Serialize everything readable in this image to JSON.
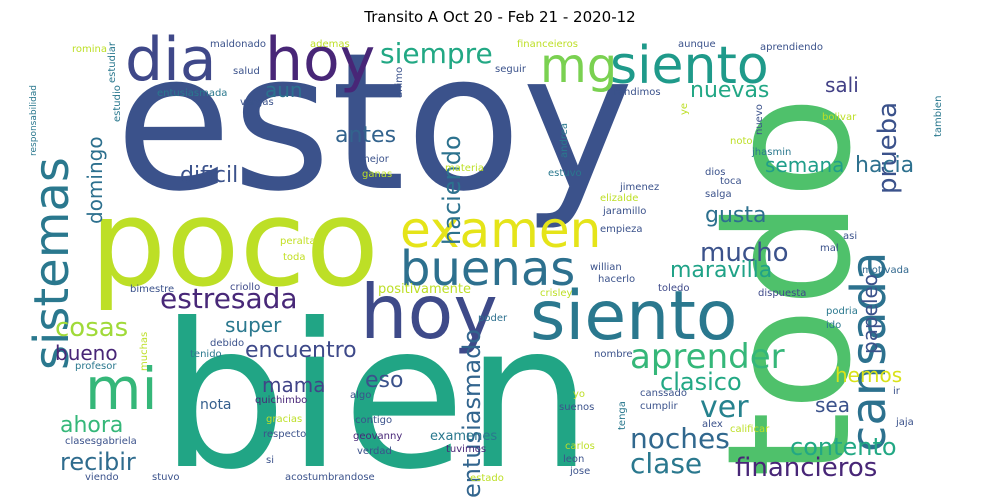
{
  "title": "Transito A Oct 20 - Feb 21 - 2020-12",
  "words": [
    {
      "text": "estoy",
      "color": "#3b528b"
    },
    {
      "text": "bien",
      "color": "#21a585"
    },
    {
      "text": "todo",
      "color": "#4fc16b"
    },
    {
      "text": "poco",
      "color": "#bddf26"
    },
    {
      "text": "siento",
      "color": "#2a788e"
    },
    {
      "text": "hoy",
      "color": "#3e4a89"
    },
    {
      "text": "dia",
      "color": "#3f4889"
    },
    {
      "text": "hoy",
      "color": "#482677"
    },
    {
      "text": "sistemas",
      "color": "#2a788e"
    },
    {
      "text": "siento",
      "color": "#1f9a8a"
    },
    {
      "text": "mg",
      "color": "#7ad151"
    },
    {
      "text": "mi",
      "color": "#35b779"
    },
    {
      "text": "cansada",
      "color": "#2c718e"
    },
    {
      "text": "examen",
      "color": "#e5e419"
    },
    {
      "text": "buenas",
      "color": "#2d708e"
    },
    {
      "text": "aprender",
      "color": "#35b779"
    },
    {
      "text": "siempre",
      "color": "#22a884"
    },
    {
      "text": "estresada",
      "color": "#482878"
    },
    {
      "text": "financieros",
      "color": "#482677"
    },
    {
      "text": "noches",
      "color": "#31688e"
    },
    {
      "text": "clase",
      "color": "#2a788e"
    },
    {
      "text": "ver",
      "color": "#26828e"
    },
    {
      "text": "haciendo",
      "color": "#2c728e"
    },
    {
      "text": "entusiasmado",
      "color": "#32658e"
    },
    {
      "text": "mucho",
      "color": "#3b528b"
    },
    {
      "text": "prueba",
      "color": "#3b528b"
    },
    {
      "text": "recibir",
      "color": "#2f6c8e"
    },
    {
      "text": "cosas",
      "color": "#a0da39"
    },
    {
      "text": "contento",
      "color": "#22a884"
    },
    {
      "text": "encuentro",
      "color": "#3e4989"
    },
    {
      "text": "maravilla",
      "color": "#1fa287"
    },
    {
      "text": "clasico",
      "color": "#22a884"
    },
    {
      "text": "nuevas",
      "color": "#22a785"
    },
    {
      "text": "antes",
      "color": "#33638d"
    },
    {
      "text": "domingo",
      "color": "#2d708e"
    },
    {
      "text": "dificil",
      "color": "#3b528b"
    },
    {
      "text": "papeleo",
      "color": "#3b528b"
    },
    {
      "text": "ahora",
      "color": "#35b779"
    },
    {
      "text": "gusta",
      "color": "#2d708e"
    },
    {
      "text": "hacia",
      "color": "#2d708e"
    },
    {
      "text": "semana",
      "color": "#1f9e89"
    },
    {
      "text": "sali",
      "color": "#424086"
    },
    {
      "text": "aun",
      "color": "#2c718e"
    },
    {
      "text": "eso",
      "color": "#3b528b"
    },
    {
      "text": "super",
      "color": "#2a788e"
    },
    {
      "text": "mama",
      "color": "#414487"
    },
    {
      "text": "bueno",
      "color": "#482677"
    },
    {
      "text": "sea",
      "color": "#3b528b"
    },
    {
      "text": "hemos",
      "color": "#d8e219"
    },
    {
      "text": "nota",
      "color": "#355f8d"
    },
    {
      "text": "examenes",
      "color": "#2a788e"
    },
    {
      "text": "positivamente",
      "color": "#bddf26"
    },
    {
      "text": "bimestre",
      "color": "#3b528b"
    },
    {
      "text": "criollo",
      "color": "#3e4989"
    },
    {
      "text": "dispuesta",
      "color": "#3e4989"
    },
    {
      "text": "peralta",
      "color": "#c2df23"
    },
    {
      "text": "toda",
      "color": "#c2df23"
    },
    {
      "text": "motivada",
      "color": "#31688e"
    },
    {
      "text": "poder",
      "color": "#2d708e"
    },
    {
      "text": "crisley",
      "color": "#bddf26"
    },
    {
      "text": "toledo",
      "color": "#3e4989"
    },
    {
      "text": "hacerlo",
      "color": "#3b528b"
    },
    {
      "text": "willian",
      "color": "#3b528b"
    },
    {
      "text": "podria",
      "color": "#2a788e"
    },
    {
      "text": "ido",
      "color": "#2a788e"
    },
    {
      "text": "mal",
      "color": "#3b528b"
    },
    {
      "text": "asi",
      "color": "#3b528b"
    },
    {
      "text": "empieza",
      "color": "#3b528b"
    },
    {
      "text": "jaramillo",
      "color": "#3b528b"
    },
    {
      "text": "salga",
      "color": "#3b528b"
    },
    {
      "text": "elizalde",
      "color": "#bddf26"
    },
    {
      "text": "toca",
      "color": "#3b528b"
    },
    {
      "text": "dios",
      "color": "#3b528b"
    },
    {
      "text": "jimenez",
      "color": "#3b528b"
    },
    {
      "text": "jhasmin",
      "color": "#2a788e"
    },
    {
      "text": "noto",
      "color": "#bddf26"
    },
    {
      "text": "bolivar",
      "color": "#bddf26"
    },
    {
      "text": "tambien",
      "color": "#2a788e"
    },
    {
      "text": "nuevo",
      "color": "#3b528b"
    },
    {
      "text": "rendimos",
      "color": "#3b528b"
    },
    {
      "text": "ye",
      "color": "#bddf26"
    },
    {
      "text": "estuvo",
      "color": "#2a788e"
    },
    {
      "text": "andrea",
      "color": "#2a788e"
    },
    {
      "text": "seguir",
      "color": "#3b528b"
    },
    {
      "text": "animo",
      "color": "#3b528b"
    },
    {
      "text": "aprendiendo",
      "color": "#3b528b"
    },
    {
      "text": "aunque",
      "color": "#3b528b"
    },
    {
      "text": "financeieros",
      "color": "#bddf26"
    },
    {
      "text": "ademas",
      "color": "#bddf26"
    },
    {
      "text": "maldonado",
      "color": "#3b528b"
    },
    {
      "text": "romina",
      "color": "#bddf26"
    },
    {
      "text": "estudiar",
      "color": "#2a788e"
    },
    {
      "text": "salud",
      "color": "#3b528b"
    },
    {
      "text": "vargas",
      "color": "#3b528b"
    },
    {
      "text": "entusiasmada",
      "color": "#2a788e"
    },
    {
      "text": "estudio",
      "color": "#2a788e"
    },
    {
      "text": "responsabilidad",
      "color": "#2a788e"
    },
    {
      "text": "mejor",
      "color": "#3b528b"
    },
    {
      "text": "ganas",
      "color": "#bddf26"
    },
    {
      "text": "materia",
      "color": "#bddf26"
    },
    {
      "text": "muchas",
      "color": "#bddf26"
    },
    {
      "text": "debido",
      "color": "#3b528b"
    },
    {
      "text": "tenido",
      "color": "#2a788e"
    },
    {
      "text": "profesor",
      "color": "#2a788e"
    },
    {
      "text": "quichimbo",
      "color": "#482677"
    },
    {
      "text": "algo",
      "color": "#3b528b"
    },
    {
      "text": "gracias",
      "color": "#bddf26"
    },
    {
      "text": "respecto",
      "color": "#3b528b"
    },
    {
      "text": "contigo",
      "color": "#3b528b"
    },
    {
      "text": "geovanny",
      "color": "#482677"
    },
    {
      "text": "verdad",
      "color": "#3b528b"
    },
    {
      "text": "tuvimos",
      "color": "#482677"
    },
    {
      "text": "acostumbrandose",
      "color": "#3b528b"
    },
    {
      "text": "estado",
      "color": "#bddf26"
    },
    {
      "text": "clasesgabriela",
      "color": "#3b528b"
    },
    {
      "text": "si",
      "color": "#3b528b"
    },
    {
      "text": "viendo",
      "color": "#3b528b"
    },
    {
      "text": "stuvo",
      "color": "#3b528b"
    },
    {
      "text": "nombre",
      "color": "#3b528b"
    },
    {
      "text": "yo",
      "color": "#bddf26"
    },
    {
      "text": "suenos",
      "color": "#3b528b"
    },
    {
      "text": "carlos",
      "color": "#bddf26"
    },
    {
      "text": "leon",
      "color": "#3b528b"
    },
    {
      "text": "jose",
      "color": "#3b528b"
    },
    {
      "text": "tenga",
      "color": "#2a788e"
    },
    {
      "text": "canssado",
      "color": "#3b528b"
    },
    {
      "text": "cumplir",
      "color": "#3b528b"
    },
    {
      "text": "calificar",
      "color": "#bddf26"
    },
    {
      "text": "alex",
      "color": "#3b528b"
    },
    {
      "text": "ir",
      "color": "#3b528b"
    },
    {
      "text": "jaja",
      "color": "#3b528b"
    }
  ]
}
